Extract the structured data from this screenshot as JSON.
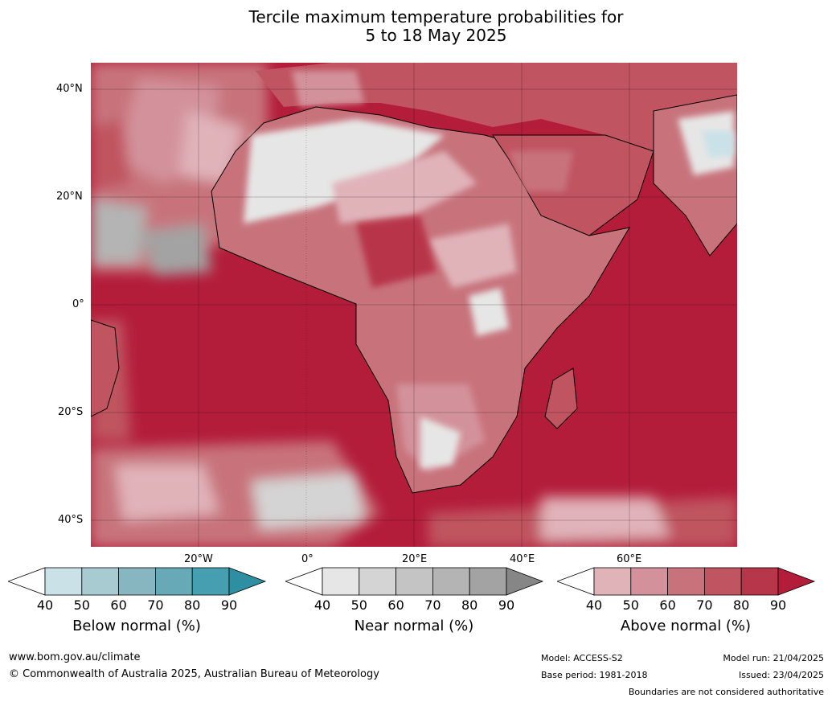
{
  "title_line1": "Tercile maximum temperature probabilities for",
  "title_line2": "5 to 18 May 2025",
  "lat_labels": [
    "40°N",
    "20°N",
    "0°",
    "20°S",
    "40°S"
  ],
  "lon_labels": [
    "20°W",
    "0°",
    "20°E",
    "40°E",
    "60°E"
  ],
  "colorbars": [
    {
      "caption": "Below normal (%)",
      "ticks": [
        "40",
        "50",
        "60",
        "70",
        "80",
        "90"
      ],
      "colors": [
        "#c9e1e7",
        "#a8cad1",
        "#88b6c0",
        "#68a9b8",
        "#459fb0",
        "#2f8fa2"
      ]
    },
    {
      "caption": "Near normal (%)",
      "ticks": [
        "40",
        "50",
        "60",
        "70",
        "80",
        "90"
      ],
      "colors": [
        "#e6e6e6",
        "#d4d4d4",
        "#c4c4c4",
        "#b4b4b4",
        "#a3a3a3",
        "#868686"
      ]
    },
    {
      "caption": "Above normal (%)",
      "ticks": [
        "40",
        "50",
        "60",
        "70",
        "80",
        "90"
      ],
      "colors": [
        "#e0b3b9",
        "#d3929b",
        "#c8737c",
        "#c05461",
        "#b8364a",
        "#b31d3a"
      ]
    }
  ],
  "footer": {
    "url": "www.bom.gov.au/climate",
    "copyright": "© Commonwealth of Australia 2025, Australian Bureau of Meteorology",
    "model": "Model: ACCESS-S2",
    "base_period": "Base period: 1981-2018",
    "model_run": "Model run: 21/04/2025",
    "issued": "Issued: 23/04/2025",
    "disclaimer": "Boundaries are not considered authoritative"
  },
  "colors": {
    "ocean_above": "#b31d3a",
    "land_above_mid": "#c8737c",
    "near_light": "#e6e6e6",
    "near_mid": "#b4b4b4",
    "below_light": "#c9e1e7"
  }
}
